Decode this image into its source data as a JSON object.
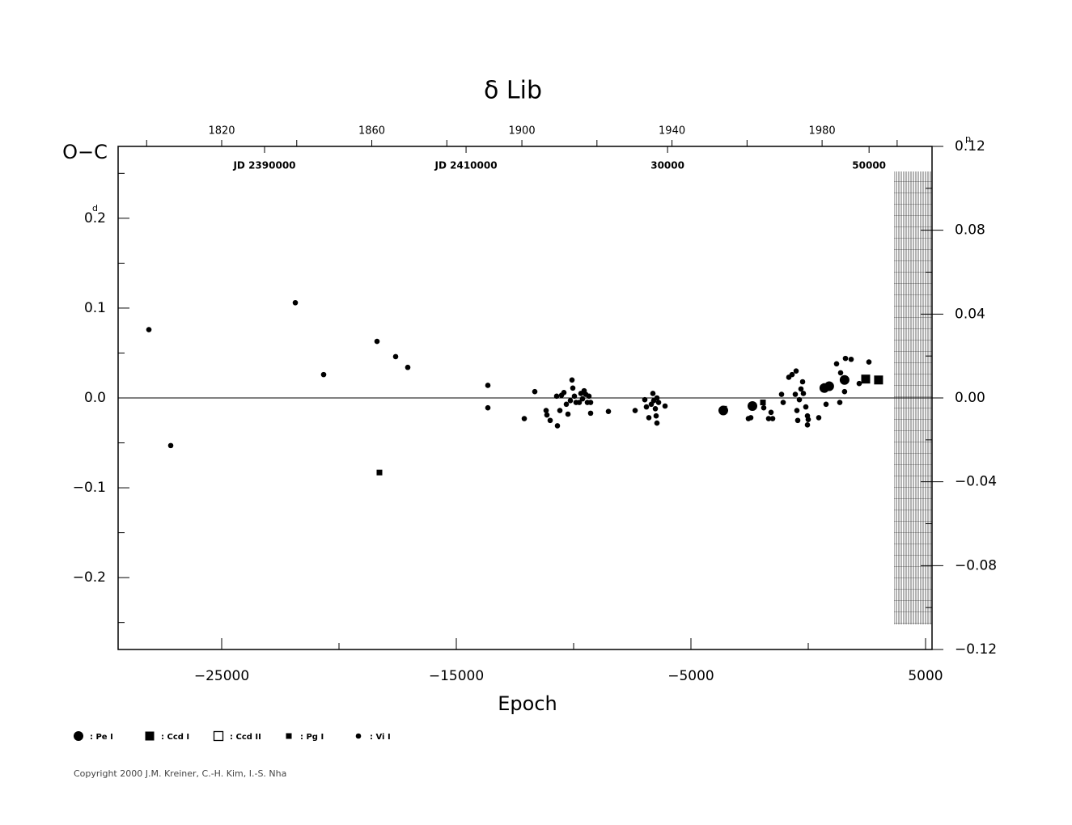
{
  "chart_data": {
    "type": "scatter",
    "title": "δ Lib",
    "ylabel": "O−C",
    "xlabel": "Epoch",
    "y_unit": "d",
    "y2_unit": "p",
    "copyright": "Copyright 2000 J.M. Kreiner, C.-H. Kim, I.-S. Nha",
    "xlim": [
      -29414,
      5276
    ],
    "xticks": [
      {
        "value": -25000,
        "label": "−25000"
      },
      {
        "value": -15000,
        "label": "−15000"
      },
      {
        "value": -5000,
        "label": "−5000"
      },
      5000
    ],
    "xminorticks": [
      -20000,
      -10000,
      0
    ],
    "ylim": [
      -0.28,
      0.28
    ],
    "yticks": [
      {
        "value": -0.2,
        "label": "−0.2"
      },
      {
        "value": -0.1,
        "label": "−0.1"
      },
      {
        "value": 0,
        "label": "0.0"
      },
      0.1,
      0.2
    ],
    "yminorticks": [
      -0.25,
      -0.15,
      -0.05,
      0.05,
      0.15,
      0.25
    ],
    "y2lim": [
      -0.12,
      0.12
    ],
    "y2ticks": [
      {
        "value": -0.12,
        "label": "−0.12"
      },
      {
        "value": -0.08,
        "label": "−0.08"
      },
      {
        "value": -0.04,
        "label": "−0.04"
      },
      {
        "value": 0,
        "label": "0.00"
      },
      0.04,
      0.08,
      0.12
    ],
    "y2minorticks": [
      -0.1,
      -0.06,
      -0.02,
      0.02,
      0.06,
      0.1
    ],
    "x2lim": [
      1792.4,
      2009.3
    ],
    "x2ticks": [
      1820,
      1860,
      1900,
      1940,
      1980
    ],
    "x2minorticks": [
      1800,
      1840,
      1880,
      1920,
      1960,
      2000
    ],
    "x3lim": [
      2375465,
      2456250
    ],
    "x3ticks": [
      {
        "value": 2390000,
        "label": "JD 2390000"
      },
      {
        "value": 2410000,
        "label": "JD 2410000"
      },
      {
        "value": 2430000,
        "label": "30000"
      },
      {
        "value": 2450000,
        "label": "50000"
      }
    ],
    "zero_line": true,
    "series": [
      {
        "name": ": Pe I",
        "marker": "big-circle",
        "color": "#000",
        "x": [
          -3621,
          -2379,
          686,
          893,
          1548
        ],
        "values": [
          -0.014,
          -0.009,
          0.011,
          0.013,
          0.02
        ]
      },
      {
        "name": ": Ccd I",
        "marker": "big-square",
        "color": "#000",
        "x": [
          2448,
          2997
        ],
        "values": [
          0.021,
          0.02
        ]
      },
      {
        "name": ": Ccd II",
        "marker": "open-square",
        "color": "#000",
        "x": [],
        "values": []
      },
      {
        "name": ": Pg I",
        "marker": "small-square",
        "color": "#000",
        "x": [
          -18276,
          -3586,
          -1931
        ],
        "values": [
          -0.083,
          -0.012,
          -0.005
        ]
      },
      {
        "name": ": Vi I",
        "marker": "dot",
        "color": "#000",
        "x": [
          -28103,
          -27172,
          -21862,
          -20655,
          -18379,
          -17586,
          -17069,
          -13655,
          -13655,
          -12103,
          -11655,
          -11173,
          -11138,
          -11000,
          -10724,
          -10690,
          -10586,
          -10517,
          -10414,
          -10310,
          -10241,
          -10138,
          -10069,
          -10034,
          -9966,
          -9897,
          -9759,
          -9690,
          -9621,
          -9552,
          -9483,
          -9414,
          -9345,
          -9276,
          -9276,
          -8517,
          -7379,
          -6966,
          -6897,
          -6793,
          -6690,
          -6621,
          -6586,
          -6517,
          -6483,
          -6448,
          -6448,
          -6379,
          -6103,
          -2552,
          -2448,
          -1897,
          -1690,
          -1586,
          -1517,
          -1138,
          -1069,
          -828,
          -690,
          -517,
          -552,
          -483,
          -448,
          -379,
          -310,
          -241,
          -207,
          -103,
          -34,
          -34,
          0,
          448,
          759,
          1207,
          1345,
          1379,
          1548,
          1586,
          1828,
          2172,
          2586
        ],
        "values": [
          0.076,
          -0.053,
          0.106,
          0.026,
          0.063,
          0.046,
          0.034,
          0.014,
          -0.011,
          -0.023,
          0.007,
          -0.014,
          -0.019,
          -0.025,
          0.002,
          -0.031,
          -0.014,
          0.003,
          0.006,
          -0.007,
          -0.018,
          -0.003,
          0.02,
          0.011,
          0.002,
          -0.005,
          -0.005,
          0.005,
          -0.001,
          0.008,
          0.004,
          -0.005,
          0.002,
          -0.005,
          -0.017,
          -0.015,
          -0.014,
          -0.002,
          -0.01,
          -0.022,
          -0.007,
          0.005,
          -0.003,
          -0.012,
          -0.02,
          0.0,
          -0.028,
          -0.005,
          -0.009,
          -0.023,
          -0.022,
          -0.011,
          -0.023,
          -0.016,
          -0.023,
          0.004,
          -0.005,
          0.023,
          0.026,
          0.03,
          0.004,
          -0.014,
          -0.025,
          -0.002,
          0.01,
          0.018,
          0.005,
          -0.01,
          -0.02,
          -0.03,
          -0.024,
          -0.022,
          -0.007,
          0.038,
          -0.005,
          0.028,
          0.007,
          0.044,
          0.043,
          0.016,
          0.04
        ]
      }
    ]
  }
}
